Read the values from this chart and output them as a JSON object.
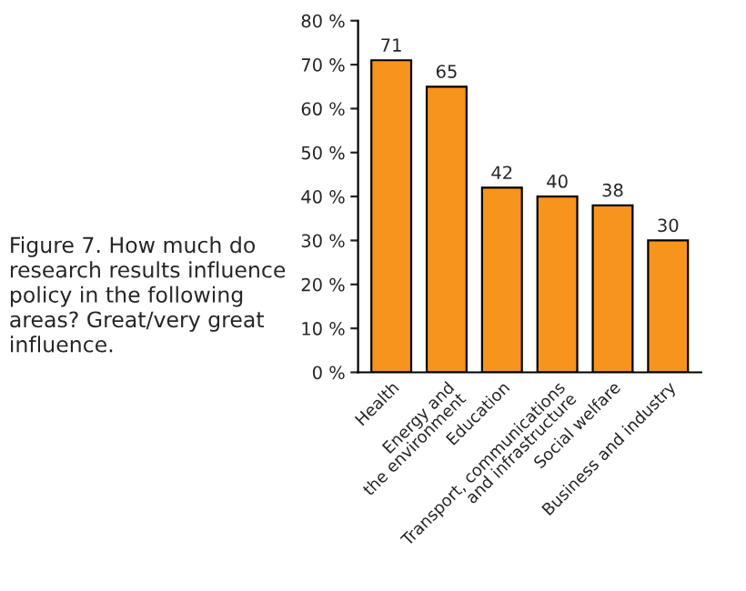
{
  "chart_data": {
    "type": "bar",
    "title": "Figure 7. How much do\nresearch results influence\npolicy in the following\nareas? Great/very great\ninfluence.",
    "categories": [
      "Health",
      "Energy and\nthe environment",
      "Education",
      "Transport, communications\nand infrastructure",
      "Social welfare",
      "Business and industry"
    ],
    "values": [
      71,
      65,
      42,
      40,
      38,
      30
    ],
    "color": "#f7941d",
    "ylim": [
      0,
      80
    ],
    "yticks": [
      {
        "value": 0,
        "label": "0 %"
      },
      {
        "value": 10,
        "label": "10 %"
      },
      {
        "value": 20,
        "label": "20 %"
      },
      {
        "value": 30,
        "label": "30 %"
      },
      {
        "value": 40,
        "label": "40 %"
      },
      {
        "value": 50,
        "label": "50 %"
      },
      {
        "value": 60,
        "label": "60 %"
      },
      {
        "value": 70,
        "label": "70 %"
      },
      {
        "value": 80,
        "label": "80 %"
      }
    ],
    "data_labels": true,
    "grid": false
  }
}
